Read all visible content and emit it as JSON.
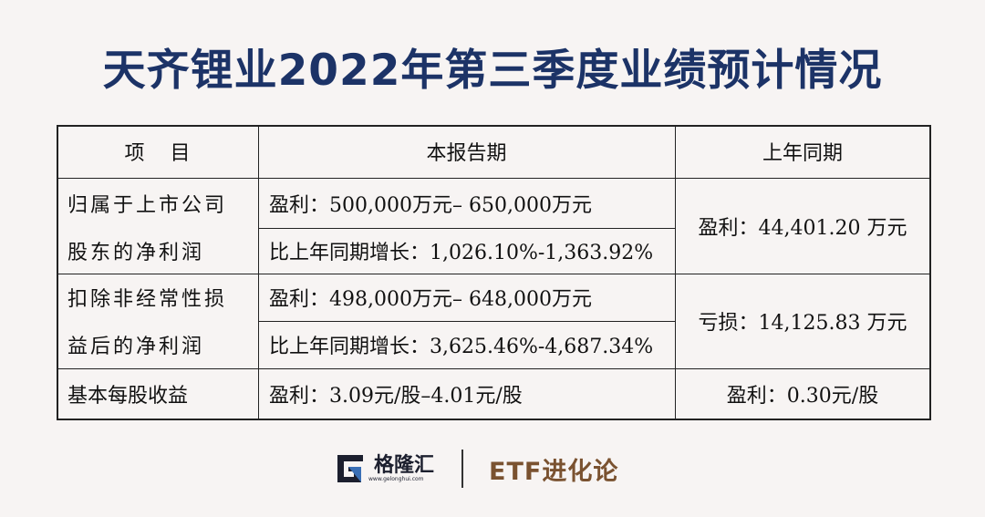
{
  "title": "天齐锂业2022年第三季度业绩预计情况",
  "table": {
    "headers": [
      "项    目",
      "本报告期",
      "上年同期"
    ],
    "rows": [
      {
        "item": [
          "归属于上市公司",
          "股东的净利润"
        ],
        "current": [
          "盈利：500,000万元– 650,000万元",
          "比上年同期增长：1,026.10%-1,363.92%"
        ],
        "prior": "盈利：44,401.20 万元"
      },
      {
        "item": [
          "扣除非经常性损",
          "益后的净利润"
        ],
        "current": [
          "盈利：498,000万元– 648,000万元",
          "比上年同期增长：3,625.46%-4,687.34%"
        ],
        "prior": "亏损：14,125.83 万元"
      },
      {
        "item": [
          "基本每股收益"
        ],
        "current": [
          "盈利：3.09元/股–4.01元/股"
        ],
        "prior": "盈利：0.30元/股"
      }
    ]
  },
  "footer": {
    "brand_name": "格隆汇",
    "brand_url": "www.gelonghui.com",
    "partner": "ETF进化论"
  },
  "colors": {
    "title": "#1c3367",
    "partner": "#7a5230",
    "logo_blue": "#3a6fb5",
    "logo_dark": "#1c1f2e"
  }
}
